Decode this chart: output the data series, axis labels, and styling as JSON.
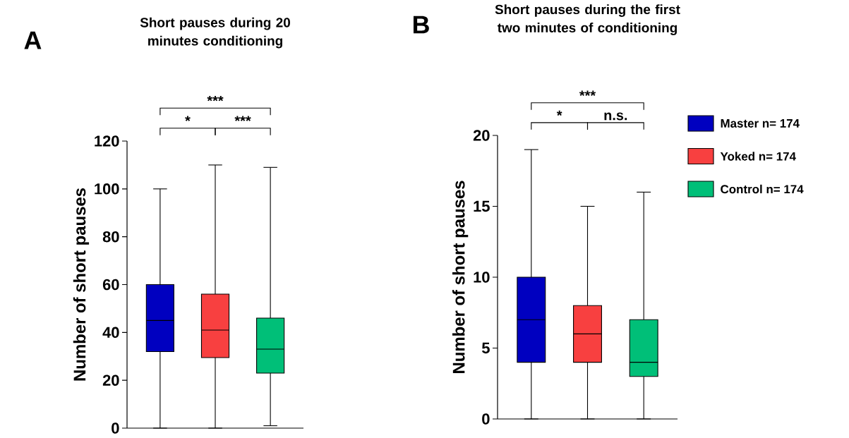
{
  "chart_data": [
    {
      "type": "box",
      "title": "Short pauses during 20 minutes conditioning",
      "ylabel": "Number of short pauses",
      "categories": [
        null,
        null,
        null
      ],
      "ylim": [
        0,
        120
      ],
      "yticks": [
        0,
        20,
        40,
        60,
        80,
        100,
        120
      ],
      "legend": false,
      "annotations": [
        "A",
        "*",
        "***",
        "***"
      ],
      "series": [
        {
          "color": "#0000c0",
          "boxes": [
            {
              "low": 0,
              "q1": 32,
              "median": 45,
              "q3": 60,
              "high": 100
            },
            null,
            null
          ]
        },
        {
          "color": "#f84040",
          "boxes": [
            null,
            {
              "low": 0,
              "q1": 29.5,
              "median": 41,
              "q3": 56,
              "high": 110
            },
            null
          ]
        },
        {
          "color": "#00bf78",
          "boxes": [
            null,
            null,
            {
              "low": 1,
              "q1": 23,
              "median": 33,
              "q3": 46,
              "high": 109
            }
          ]
        }
      ]
    },
    {
      "type": "box",
      "title": "Short pauses during the first two minutes of conditioning",
      "ylabel": "Number of short pauses",
      "categories": [
        null,
        null,
        null
      ],
      "ylim": [
        0,
        20
      ],
      "yticks": [
        0,
        5,
        10,
        15,
        20
      ],
      "legend": "right",
      "annotations": [
        "B",
        "*",
        "n.s.",
        "***"
      ],
      "series": [
        {
          "name": "Master n= 174",
          "color": "#0000c0",
          "boxes": [
            {
              "low": 0,
              "q1": 4,
              "median": 7,
              "q3": 10,
              "high": 19
            },
            null,
            null
          ]
        },
        {
          "name": "Yoked n= 174",
          "color": "#f84040",
          "boxes": [
            null,
            {
              "low": 0,
              "q1": 4,
              "median": 6,
              "q3": 8,
              "high": 15
            },
            null
          ]
        },
        {
          "name": "Control n= 174",
          "color": "#00bf78",
          "boxes": [
            null,
            null,
            {
              "low": 0,
              "q1": 3,
              "median": 4,
              "q3": 7,
              "high": 16
            }
          ]
        }
      ]
    }
  ]
}
